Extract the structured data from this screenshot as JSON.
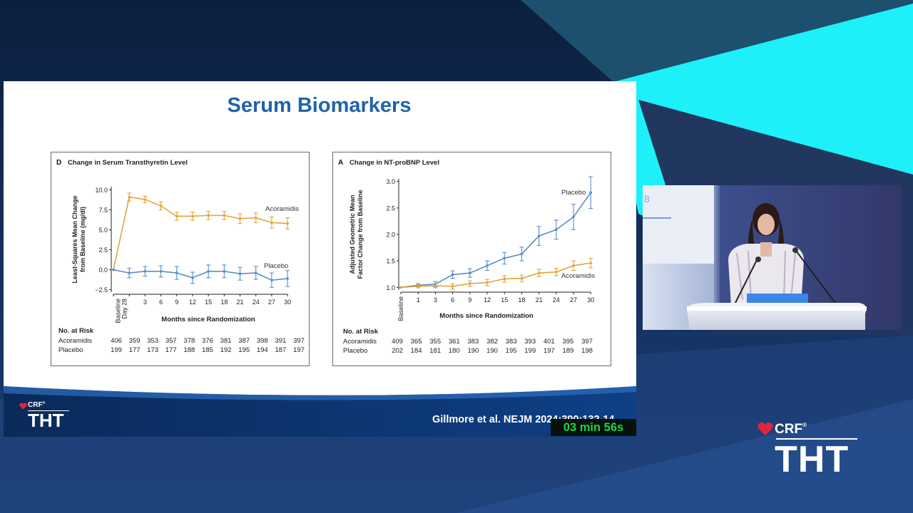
{
  "slide": {
    "title": "Serum Biomarkers",
    "citation": "Gillmore et al. NEJM 2024;390:132-14",
    "logo": {
      "crf": "CRF",
      "reg": "®",
      "tht": "THT"
    }
  },
  "timer": "03 min 56s",
  "brand": {
    "crf": "CRF",
    "reg": "®",
    "tht": "THT"
  },
  "colors": {
    "acoramidis": "#e2a53a",
    "placebo": "#5b8ec4",
    "title": "#1f63ad"
  },
  "chart_data": [
    {
      "type": "line",
      "panel_letter": "D",
      "title": "Change in Serum Transthyretin Level",
      "ylabel_lines": [
        "Least-Squares Mean Change",
        "from Baseline (mg/dl)"
      ],
      "xlabel": "Months since Randomization",
      "x": [
        "Baseline",
        "Day 28",
        "3",
        "6",
        "9",
        "12",
        "15",
        "18",
        "21",
        "24",
        "27",
        "30"
      ],
      "x_tick_labels": [
        "Baseline\nDay 28",
        "3",
        "6",
        "9",
        "12",
        "15",
        "18",
        "21",
        "24",
        "27",
        "30"
      ],
      "ylim": [
        -2.8,
        10.4
      ],
      "yticks": [
        -2.5,
        0.0,
        2.5,
        5.0,
        7.5,
        10.0
      ],
      "ytick_labels": [
        "−2.5",
        "0.0",
        "2.5",
        "5.0",
        "7.5",
        "10.0"
      ],
      "series": [
        {
          "name": "Acoramidis",
          "values": [
            0.0,
            9.1,
            8.8,
            8.0,
            6.7,
            6.7,
            6.8,
            6.8,
            6.4,
            6.5,
            5.9,
            5.8
          ],
          "errors": [
            0,
            0.5,
            0.4,
            0.5,
            0.5,
            0.5,
            0.5,
            0.5,
            0.6,
            0.6,
            0.7,
            0.7
          ]
        },
        {
          "name": "Placebo",
          "values": [
            0.0,
            -0.4,
            -0.2,
            -0.2,
            -0.4,
            -1.0,
            -0.2,
            -0.2,
            -0.5,
            -0.4,
            -1.3,
            -1.1
          ],
          "errors": [
            0,
            0.6,
            0.6,
            0.7,
            0.8,
            0.7,
            0.8,
            0.8,
            0.8,
            0.8,
            0.9,
            1.0
          ]
        }
      ],
      "risk_table": {
        "label": "No. at Risk",
        "rows": [
          {
            "name": "Acoramidis",
            "values": [
              "406",
              "359",
              "353",
              "357",
              "378",
              "376",
              "381",
              "387",
              "398",
              "391",
              "397"
            ]
          },
          {
            "name": "Placebo",
            "values": [
              "199",
              "177",
              "173",
              "177",
              "188",
              "185",
              "192",
              "195",
              "194",
              "187",
              "197"
            ]
          }
        ]
      }
    },
    {
      "type": "line",
      "panel_letter": "A",
      "title": "Change in NT-proBNP Level",
      "ylabel_lines": [
        "Adjusted Geometric Mean",
        "Factor Change from Baseline"
      ],
      "xlabel": "Months since Randomization",
      "x": [
        "Baseline",
        "1",
        "3",
        "6",
        "9",
        "12",
        "15",
        "18",
        "21",
        "24",
        "27",
        "30"
      ],
      "x_tick_labels": [
        "Baseline",
        "1",
        "3",
        "6",
        "9",
        "12",
        "15",
        "18",
        "21",
        "24",
        "27",
        "30"
      ],
      "ylim": [
        0.95,
        3.05
      ],
      "yticks": [
        1.0,
        1.5,
        2.0,
        2.5,
        3.0
      ],
      "ytick_labels": [
        "1.0",
        "1.5",
        "2.0",
        "2.5",
        "3.0"
      ],
      "series": [
        {
          "name": "Placebo",
          "values": [
            1.0,
            1.04,
            1.06,
            1.24,
            1.27,
            1.41,
            1.55,
            1.63,
            1.97,
            2.09,
            2.33,
            2.79
          ],
          "errors": [
            0,
            0.03,
            0.05,
            0.07,
            0.08,
            0.09,
            0.11,
            0.13,
            0.18,
            0.18,
            0.24,
            0.3
          ]
        },
        {
          "name": "Acoramidis",
          "values": [
            1.0,
            1.02,
            1.03,
            1.02,
            1.07,
            1.09,
            1.16,
            1.17,
            1.27,
            1.29,
            1.41,
            1.46
          ],
          "errors": [
            0,
            0.03,
            0.04,
            0.05,
            0.05,
            0.06,
            0.06,
            0.06,
            0.07,
            0.07,
            0.09,
            0.09
          ]
        }
      ],
      "risk_table": {
        "label": "No. at Risk",
        "rows": [
          {
            "name": "Acoramidis",
            "values": [
              "409",
              "365",
              "355",
              "361",
              "383",
              "382",
              "383",
              "393",
              "401",
              "395",
              "397"
            ]
          },
          {
            "name": "Placebo",
            "values": [
              "202",
              "184",
              "181",
              "180",
              "190",
              "190",
              "195",
              "199",
              "197",
              "189",
              "198"
            ]
          }
        ]
      }
    }
  ]
}
